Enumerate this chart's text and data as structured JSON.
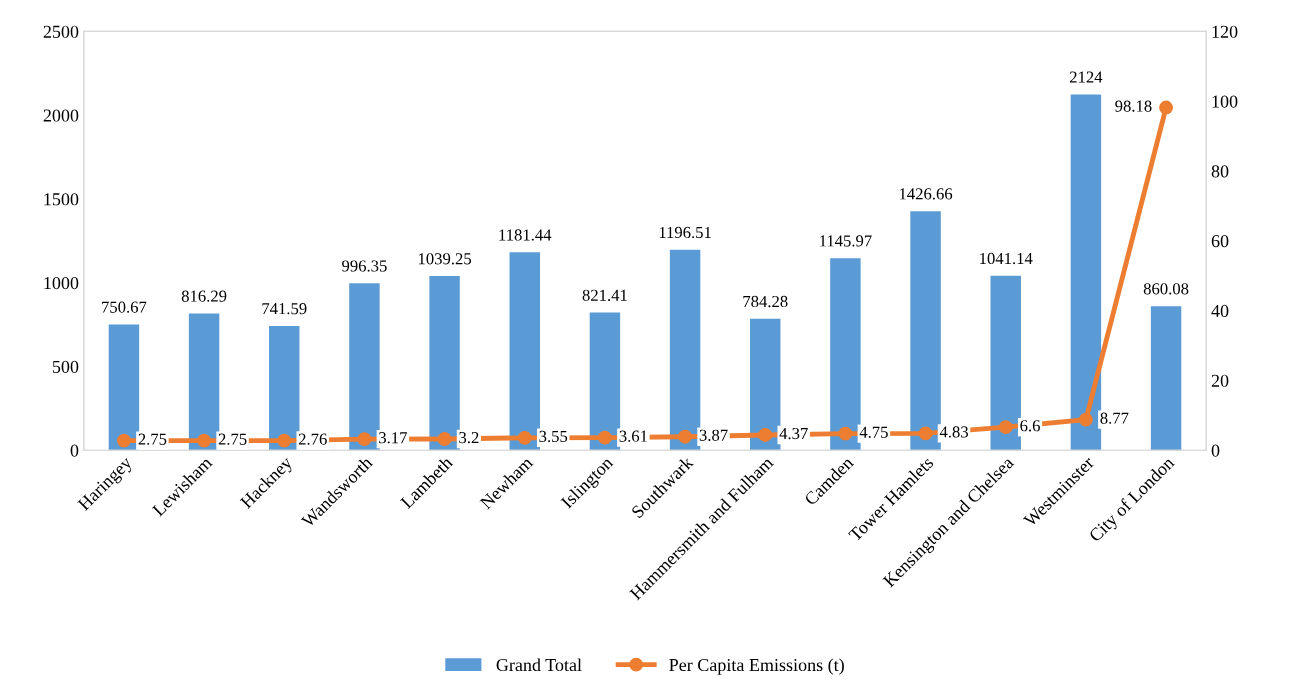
{
  "chart_data": {
    "type": "bar",
    "categories": [
      "Haringey",
      "Lewisham",
      "Hackney",
      "Wandsworth",
      "Lambeth",
      "Newham",
      "Islington",
      "Southwark",
      "Hammersmith and Fulham",
      "Camden",
      "Tower Hamlets",
      "Kensington and Chelsea",
      "Westminster",
      "City of London"
    ],
    "series": [
      {
        "name": "Grand Total",
        "color": "#5b9bd5",
        "values": [
          750.67,
          816.29,
          741.59,
          996.35,
          1039.25,
          1181.44,
          821.41,
          1196.51,
          784.28,
          1145.97,
          1426.66,
          1041.14,
          2124,
          860.08
        ]
      },
      {
        "name": "Per Capita Emissions (t)",
        "type": "line",
        "axis": "y2",
        "color": "#ed7d31",
        "marker": "circle",
        "values": [
          2.75,
          2.75,
          2.76,
          3.17,
          3.2,
          3.55,
          3.61,
          3.87,
          4.37,
          4.75,
          4.83,
          6.6,
          8.77,
          98.18
        ]
      }
    ],
    "ylim": [
      0,
      2500
    ],
    "yticks": [
      0,
      500,
      1000,
      1500,
      2000,
      2500
    ],
    "y2lim": [
      0,
      120
    ],
    "y2ticks": [
      0,
      20,
      40,
      60,
      80,
      100,
      120
    ],
    "data_labels": true,
    "grid": false,
    "legend": "bottom"
  }
}
